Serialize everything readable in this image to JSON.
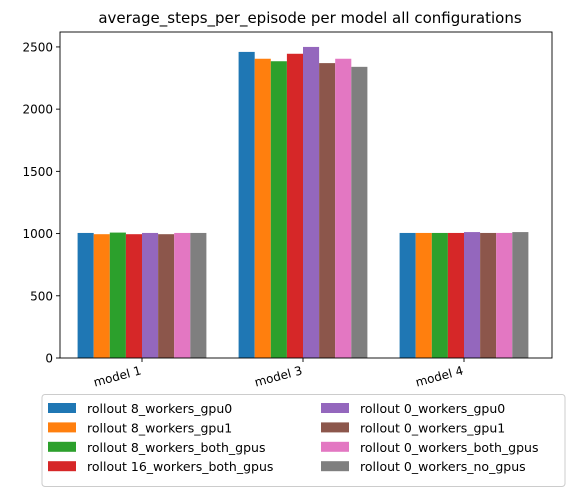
{
  "chart_data": {
    "type": "bar",
    "title": "average_steps_per_episode per model all configurations",
    "xlabel": "",
    "ylabel": "",
    "categories": [
      "model 1",
      "model 3",
      "model 4"
    ],
    "yticks": [
      0,
      500,
      1000,
      1500,
      2000,
      2500
    ],
    "ylim": [
      0,
      2620
    ],
    "grid": false,
    "legend_position": "bottom-center",
    "series": [
      {
        "name": "rollout 8_workers_gpu0",
        "color": "#1f77b4",
        "values": [
          1005,
          2460,
          1005
        ]
      },
      {
        "name": "rollout 8_workers_gpu1",
        "color": "#ff7f0e",
        "values": [
          995,
          2405,
          1005
        ]
      },
      {
        "name": "rollout 8_workers_both_gpus",
        "color": "#2ca02c",
        "values": [
          1008,
          2385,
          1005
        ]
      },
      {
        "name": "rollout 16_workers_both_gpus",
        "color": "#d62728",
        "values": [
          995,
          2445,
          1005
        ]
      },
      {
        "name": "rollout 0_workers_gpu0",
        "color": "#9467bd",
        "values": [
          1005,
          2500,
          1012
        ]
      },
      {
        "name": "rollout 0_workers_gpu1",
        "color": "#8c564b",
        "values": [
          995,
          2370,
          1005
        ]
      },
      {
        "name": "rollout 0_workers_both_gpus",
        "color": "#e377c2",
        "values": [
          1005,
          2405,
          1005
        ]
      },
      {
        "name": "rollout 0_workers_no_gpus",
        "color": "#7f7f7f",
        "values": [
          1005,
          2340,
          1012
        ]
      }
    ]
  }
}
